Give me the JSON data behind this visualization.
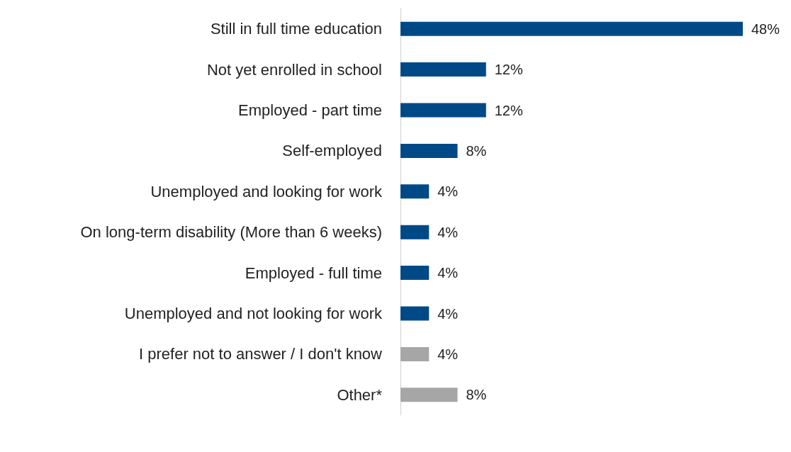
{
  "chart_data": {
    "type": "bar",
    "orientation": "horizontal",
    "categories": [
      "Still in full time education",
      "Not yet enrolled in school",
      "Employed - part time",
      "Self-employed",
      "Unemployed and looking for work",
      "On long-term disability (More than 6 weeks)",
      "Employed - full time",
      "Unemployed and not looking for work",
      "I prefer not to answer / I don't know",
      "Other*"
    ],
    "values": [
      48,
      12,
      12,
      8,
      4,
      4,
      4,
      4,
      4,
      8
    ],
    "value_labels": [
      "48%",
      "12%",
      "12%",
      "8%",
      "4%",
      "4%",
      "4%",
      "4%",
      "4%",
      "8%"
    ],
    "colors": [
      "#004987",
      "#004987",
      "#004987",
      "#004987",
      "#004987",
      "#004987",
      "#004987",
      "#004987",
      "#a6a6a6",
      "#a6a6a6"
    ],
    "data_labels": false
  }
}
